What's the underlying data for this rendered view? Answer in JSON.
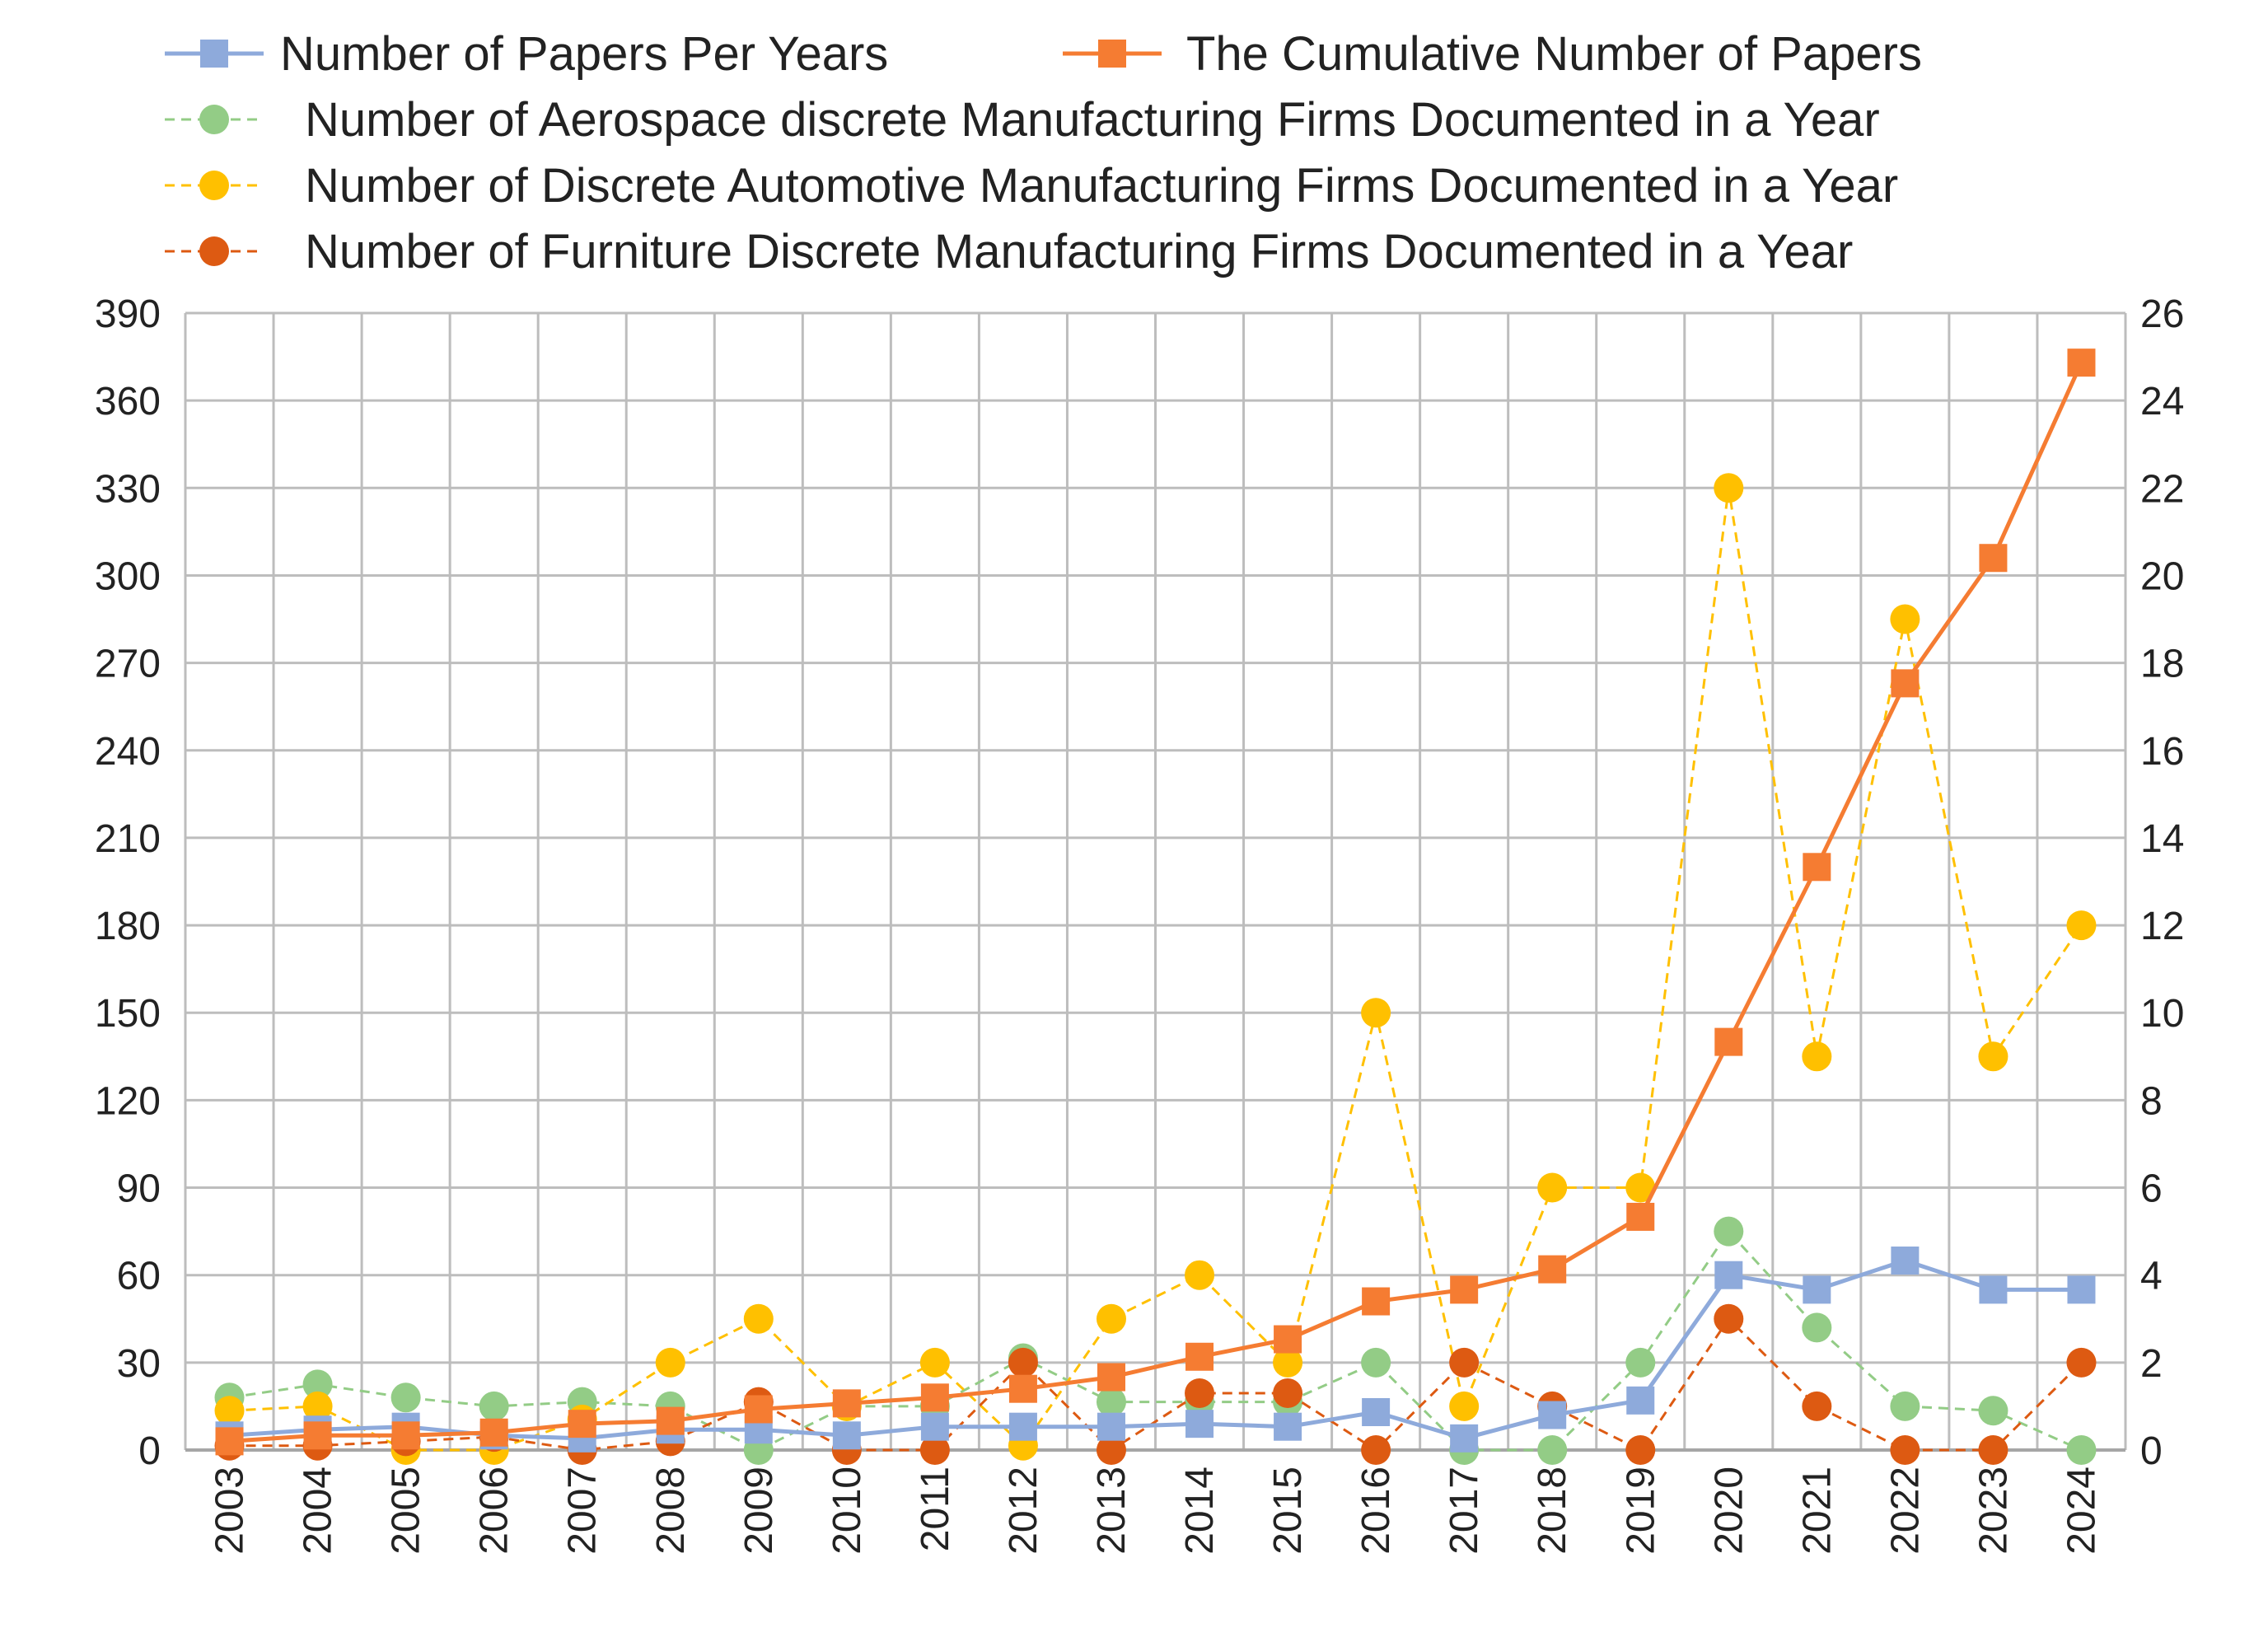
{
  "chart_data": {
    "type": "line",
    "categories": [
      "2003",
      "2004",
      "2005",
      "2006",
      "2007",
      "2008",
      "2009",
      "2010",
      "2011",
      "2012",
      "2013",
      "2014",
      "2015",
      "2016",
      "2017",
      "2018",
      "2019",
      "2020",
      "2021",
      "2022",
      "2023",
      "2024"
    ],
    "left_axis": {
      "ylim": [
        0,
        390
      ],
      "ticks": [
        0,
        30,
        60,
        90,
        120,
        150,
        180,
        210,
        240,
        270,
        300,
        330,
        360,
        390
      ],
      "tick_labels": [
        "0",
        "30",
        "60",
        "90",
        "120",
        "150",
        "180",
        "210",
        "240",
        "270",
        "300",
        "330",
        "360",
        "390"
      ]
    },
    "right_axis": {
      "ylim": [
        0,
        26
      ],
      "ticks": [
        0,
        2,
        4,
        6,
        8,
        10,
        12,
        14,
        16,
        18,
        20,
        22,
        24,
        26
      ],
      "tick_labels": [
        "0",
        "2",
        "4",
        "6",
        "8",
        "10",
        "12",
        "14",
        "16",
        "18",
        "20",
        "22",
        "24",
        "26"
      ]
    },
    "grid": true,
    "legend_position": "top",
    "series": [
      {
        "name": "Number of Papers Per Years",
        "axis": "left",
        "marker": "square",
        "line": "solid",
        "color": "#8eaadb",
        "values": [
          5,
          7,
          8,
          5,
          4,
          7,
          7,
          5,
          8,
          8,
          8,
          9,
          8,
          13,
          4,
          12,
          17,
          60,
          55,
          65,
          55,
          55
        ]
      },
      {
        "name": "The Cumulative Number of Papers",
        "axis": "left",
        "marker": "square",
        "line": "solid",
        "color": "#f57c32",
        "values": [
          3,
          5,
          5,
          6,
          9,
          10,
          14,
          16,
          18,
          21,
          25,
          32,
          38,
          51,
          55,
          62,
          80,
          140,
          200,
          263,
          306,
          373
        ]
      },
      {
        "name": "Number of Aerospace discrete Manufacturing Firms Documented in a Year",
        "axis": "right",
        "marker": "circle",
        "line": "dashed",
        "color": "#93cc86",
        "values": [
          1.2,
          1.5,
          1.2,
          1,
          1.1,
          1,
          0,
          1,
          1,
          2.1,
          1.1,
          1.1,
          1.1,
          2,
          0,
          0,
          2,
          5,
          2.8,
          1,
          0.9,
          0
        ]
      },
      {
        "name": "Number of Discrete Automotive Manufacturing Firms Documented in a Year",
        "axis": "right",
        "marker": "circle",
        "line": "dashed",
        "color": "#ffc000",
        "values": [
          0.9,
          1,
          0,
          0,
          0.7,
          2,
          3,
          1,
          2,
          0.1,
          3,
          4,
          2,
          10,
          1,
          6,
          6,
          22,
          9,
          19,
          9,
          12
        ]
      },
      {
        "name": "Number of Furniture Discrete Manufacturing Firms Documented in a Year",
        "axis": "right",
        "marker": "circle",
        "line": "dashed",
        "color": "#dd5a12",
        "values": [
          0.1,
          0.1,
          0.2,
          0.3,
          0,
          0.2,
          1.1,
          0,
          0,
          2,
          0,
          1.3,
          1.3,
          0,
          2,
          1,
          0,
          3,
          1,
          0,
          0,
          2
        ]
      }
    ]
  }
}
